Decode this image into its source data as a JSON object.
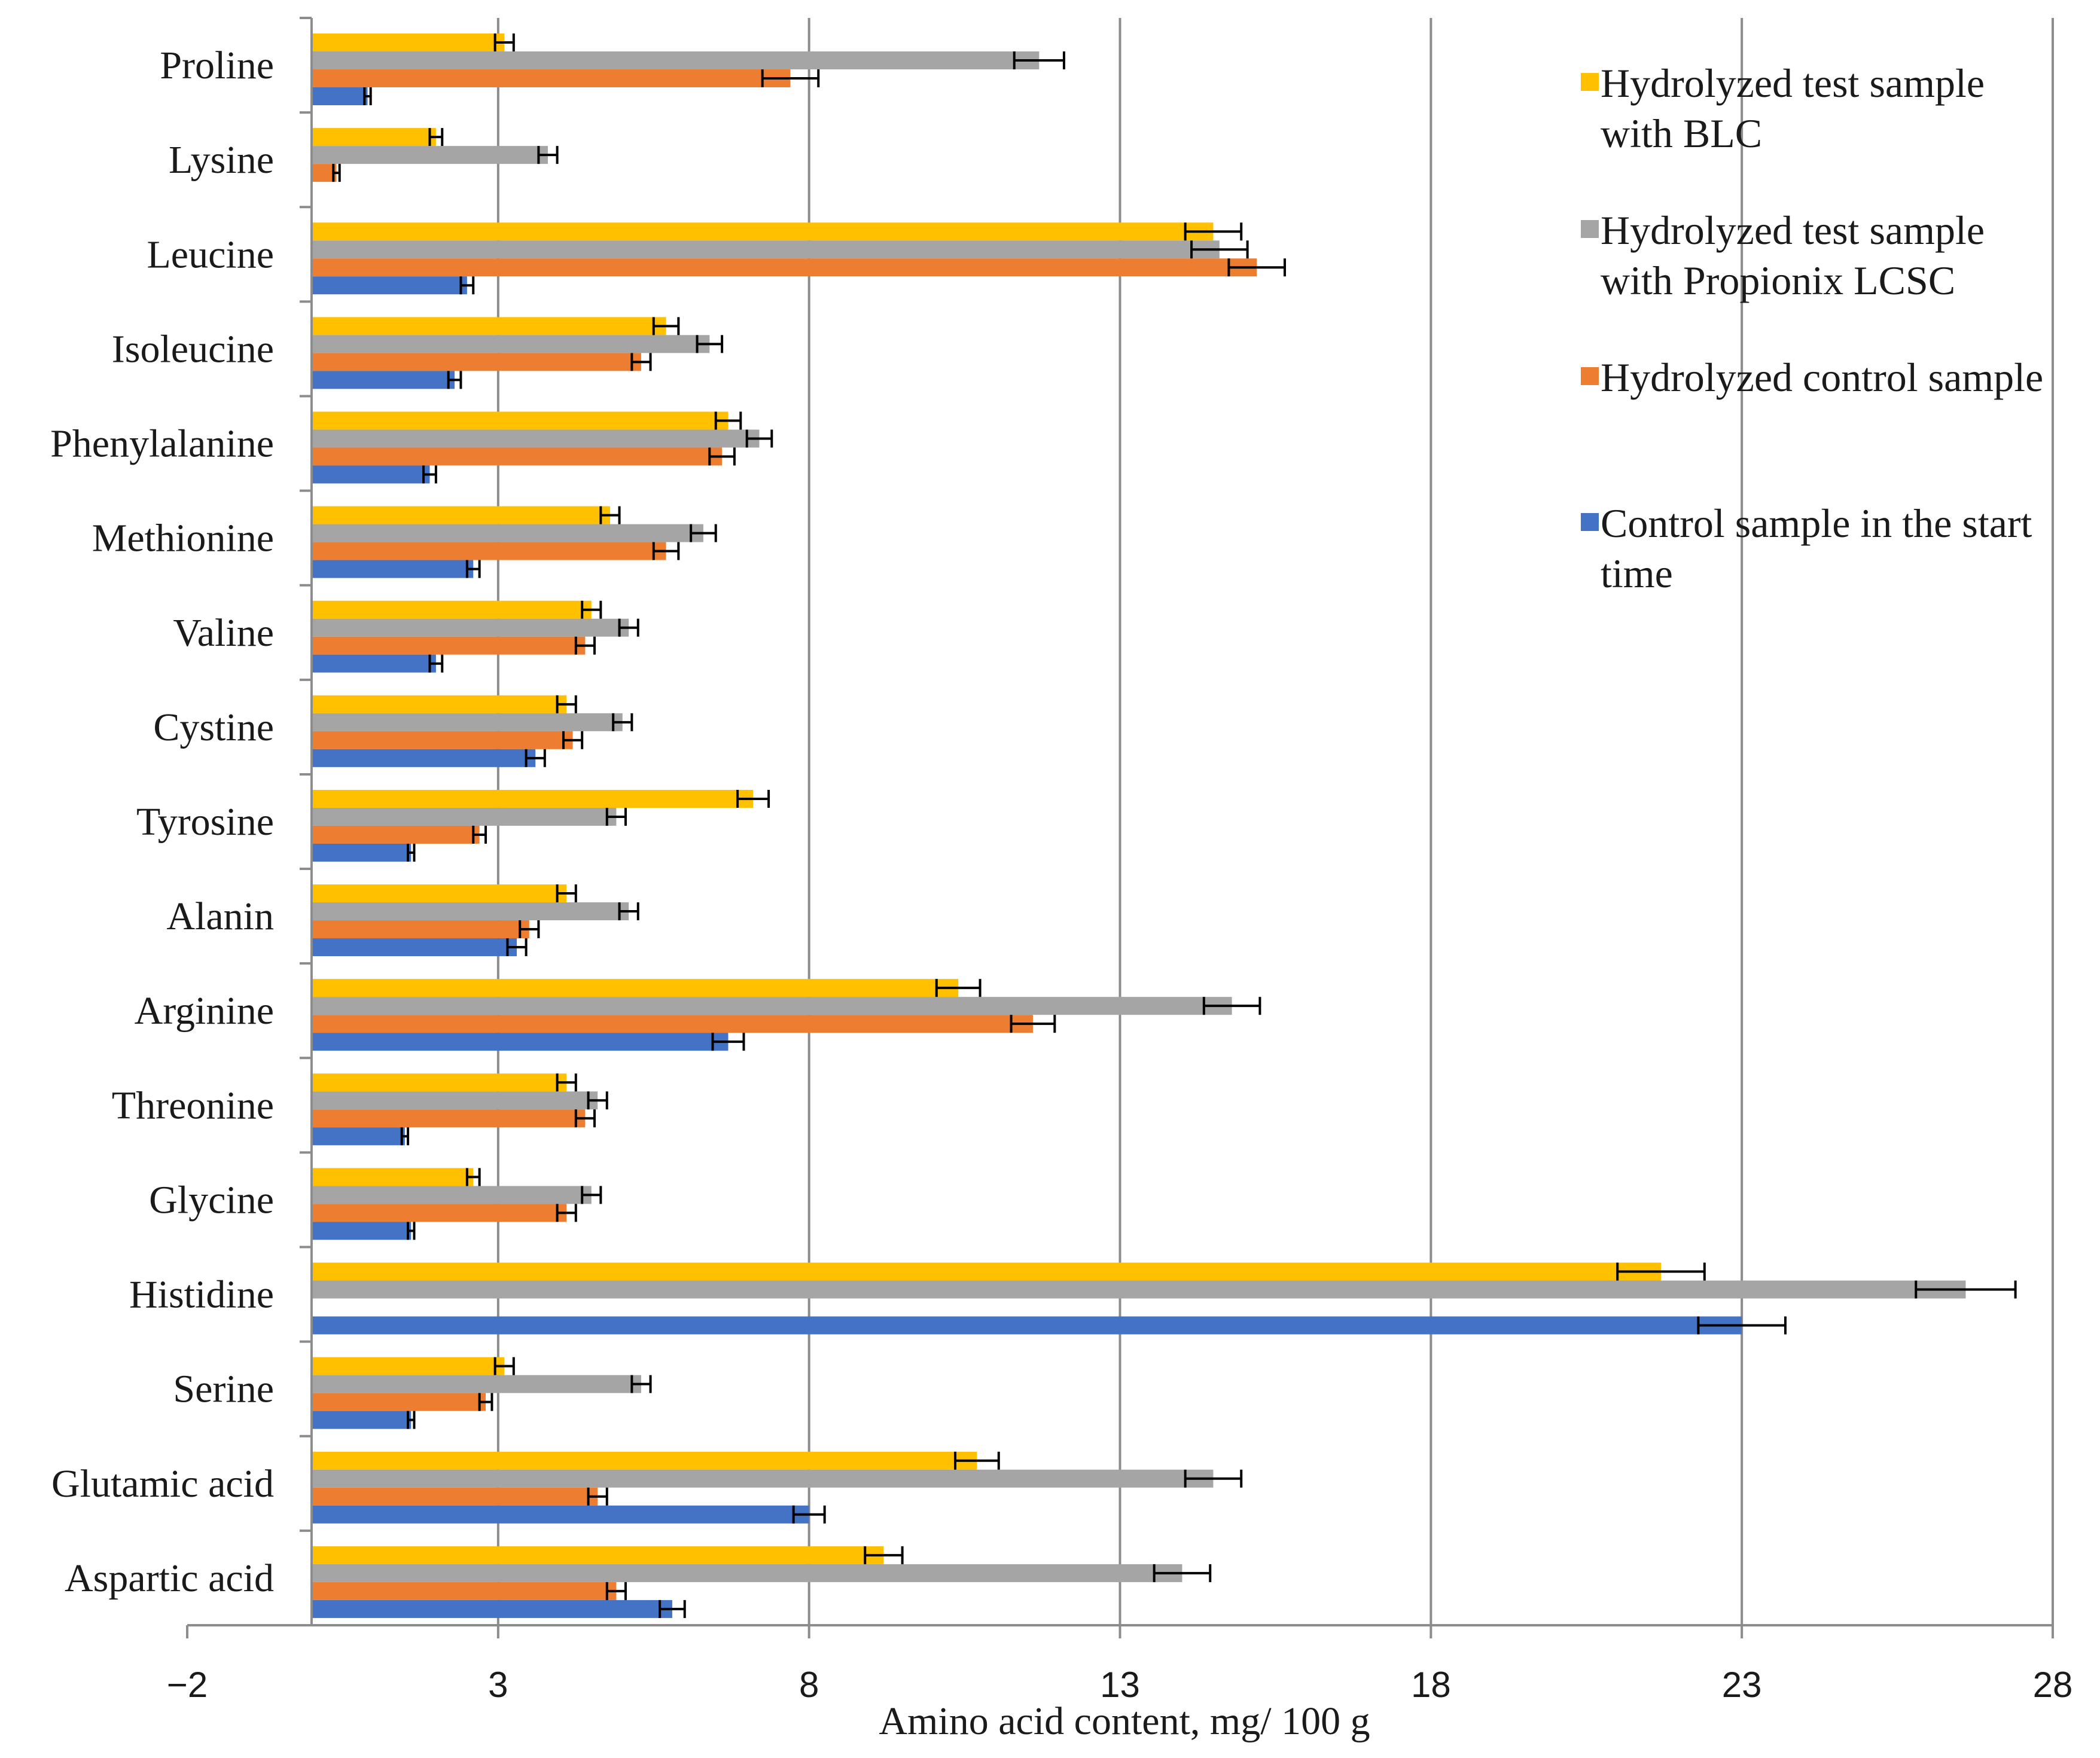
{
  "chart_data": {
    "type": "bar",
    "orientation": "horizontal",
    "xlabel": "Amino acid content, mg/ 100 g",
    "xlim": [
      -2,
      28
    ],
    "xticks": [
      -2,
      3,
      8,
      13,
      18,
      23,
      28
    ],
    "xtick_labels": [
      "−2",
      "3",
      "8",
      "13",
      "18",
      "23",
      "28"
    ],
    "grid": "vertical",
    "legend_position": "right",
    "categories": [
      "Proline",
      "Lysine",
      "Leucine",
      "Isoleucine",
      "Phenylalanine",
      "Methionine",
      "Valine",
      "Cystine",
      "Tyrosine",
      "Alanin",
      "Arginine",
      "Threonine",
      "Glycine",
      "Histidine",
      "Serine",
      "Glutamic acid",
      "Aspartic acid"
    ],
    "series": [
      {
        "name": "Hydrolyzed test sample with BLC",
        "legend_lines": [
          "Hydrolyzed test sample",
          "with BLC"
        ],
        "color": "#ffc000",
        "values": [
          3.1,
          2.0,
          14.5,
          5.7,
          6.7,
          4.8,
          4.5,
          4.1,
          7.1,
          4.1,
          10.4,
          4.1,
          2.6,
          21.7,
          3.1,
          10.7,
          9.2
        ],
        "errors": [
          0.15,
          0.1,
          0.45,
          0.2,
          0.2,
          0.15,
          0.15,
          0.15,
          0.25,
          0.15,
          0.35,
          0.15,
          0.1,
          0.7,
          0.15,
          0.35,
          0.3
        ]
      },
      {
        "name": "Hydrolyzed test sample with Propionix LCSC",
        "legend_lines": [
          "Hydrolyzed test sample",
          "with Propionix LCSC"
        ],
        "color": "#a5a5a5",
        "values": [
          11.7,
          3.8,
          14.6,
          6.4,
          7.2,
          6.3,
          5.1,
          5.0,
          4.9,
          5.1,
          14.8,
          4.6,
          4.5,
          26.6,
          5.3,
          14.5,
          14.0
        ],
        "errors": [
          0.4,
          0.15,
          0.45,
          0.2,
          0.2,
          0.2,
          0.15,
          0.15,
          0.15,
          0.15,
          0.45,
          0.15,
          0.15,
          0.8,
          0.15,
          0.45,
          0.45
        ]
      },
      {
        "name": "Hydrolyzed control sample",
        "legend_lines": [
          "Hydrolyzed control sample"
        ],
        "color": "#ed7d31",
        "values": [
          7.7,
          0.4,
          15.2,
          5.3,
          6.6,
          5.7,
          4.4,
          4.2,
          2.7,
          3.5,
          11.6,
          4.4,
          4.1,
          null,
          2.8,
          4.6,
          4.9
        ],
        "errors": [
          0.45,
          0.05,
          0.45,
          0.15,
          0.2,
          0.2,
          0.15,
          0.15,
          0.1,
          0.15,
          0.35,
          0.15,
          0.15,
          null,
          0.1,
          0.15,
          0.15
        ]
      },
      {
        "name": "Control sample in the start time",
        "legend_lines": [
          "Control sample in the start",
          "time"
        ],
        "color": "#4472c4",
        "values": [
          0.9,
          null,
          2.5,
          2.3,
          1.9,
          2.6,
          2.0,
          3.6,
          1.6,
          3.3,
          6.7,
          1.5,
          1.6,
          23.0,
          1.6,
          8.0,
          5.8
        ],
        "errors": [
          0.05,
          null,
          0.1,
          0.1,
          0.1,
          0.1,
          0.1,
          0.15,
          0.05,
          0.15,
          0.25,
          0.05,
          0.05,
          0.7,
          0.05,
          0.25,
          0.2
        ]
      }
    ]
  }
}
